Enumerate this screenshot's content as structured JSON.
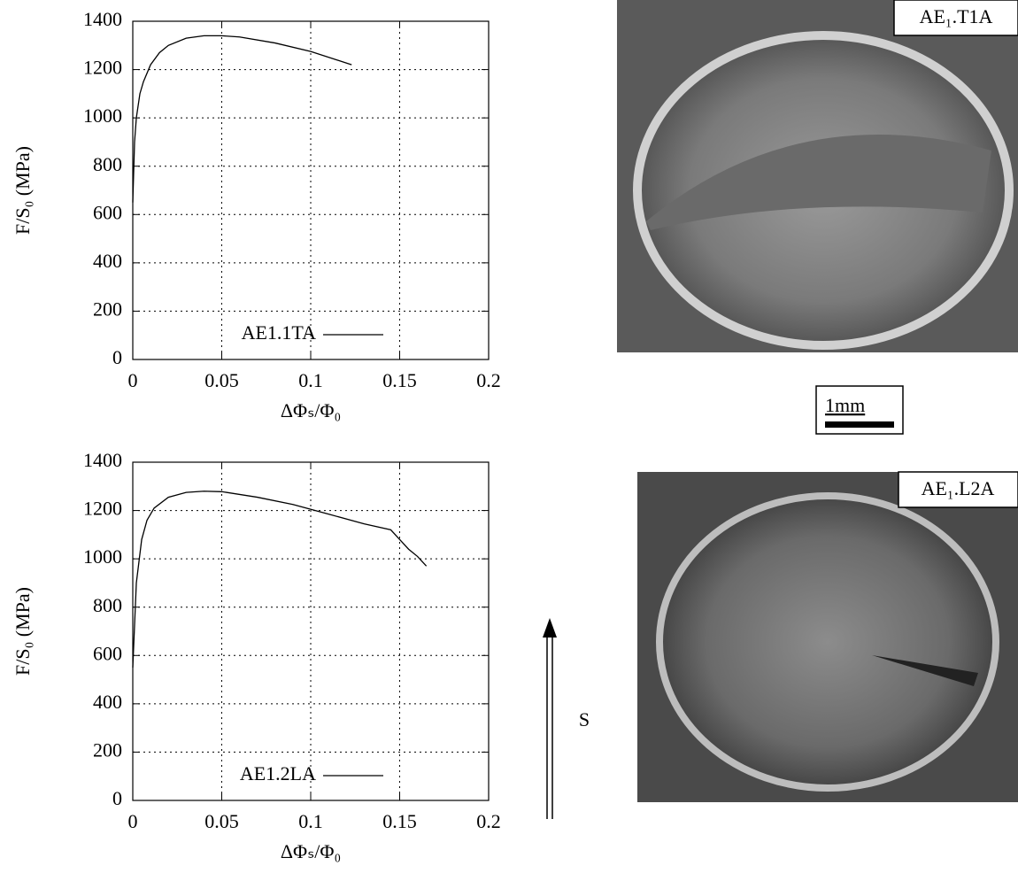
{
  "chart_data": [
    {
      "type": "line",
      "xlabel": "ΔΦₛ/Φ₀",
      "ylabel": "F/S₀ (MPa)",
      "xlim": [
        0,
        0.2
      ],
      "ylim": [
        0,
        1400
      ],
      "xticks": [
        0,
        0.05,
        0.1,
        0.15,
        0.2
      ],
      "yticks": [
        0,
        200,
        400,
        600,
        800,
        1000,
        1200,
        1400
      ],
      "grid": true,
      "legend": "lower center",
      "series": [
        {
          "name": "AE1.1TA",
          "color": "#000000",
          "x": [
            0,
            0.001,
            0.002,
            0.004,
            0.006,
            0.01,
            0.015,
            0.02,
            0.03,
            0.04,
            0.05,
            0.06,
            0.08,
            0.1,
            0.123
          ],
          "values": [
            650,
            900,
            1000,
            1100,
            1150,
            1220,
            1270,
            1300,
            1330,
            1340,
            1340,
            1335,
            1310,
            1275,
            1220
          ]
        }
      ]
    },
    {
      "type": "line",
      "xlabel": "ΔΦₛ/Φ₀",
      "ylabel": "F/S₀ (MPa)",
      "xlim": [
        0,
        0.2
      ],
      "ylim": [
        0,
        1400
      ],
      "xticks": [
        0,
        0.05,
        0.1,
        0.15,
        0.2
      ],
      "yticks": [
        0,
        200,
        400,
        600,
        800,
        1000,
        1200,
        1400
      ],
      "grid": true,
      "legend": "lower center",
      "series": [
        {
          "name": "AE1.2LA",
          "color": "#000000",
          "x": [
            0,
            0.002,
            0.005,
            0.008,
            0.012,
            0.02,
            0.03,
            0.04,
            0.05,
            0.07,
            0.09,
            0.11,
            0.13,
            0.145,
            0.15,
            0.155,
            0.16,
            0.165
          ],
          "values": [
            550,
            900,
            1080,
            1160,
            1210,
            1255,
            1275,
            1280,
            1278,
            1255,
            1225,
            1185,
            1145,
            1120,
            1080,
            1040,
            1010,
            970
          ]
        }
      ]
    }
  ],
  "images": [
    {
      "label": "AE₁.T1A"
    },
    {
      "label": "AE₁.L2A"
    }
  ],
  "scale_bar": "1mm",
  "direction_label": "S"
}
